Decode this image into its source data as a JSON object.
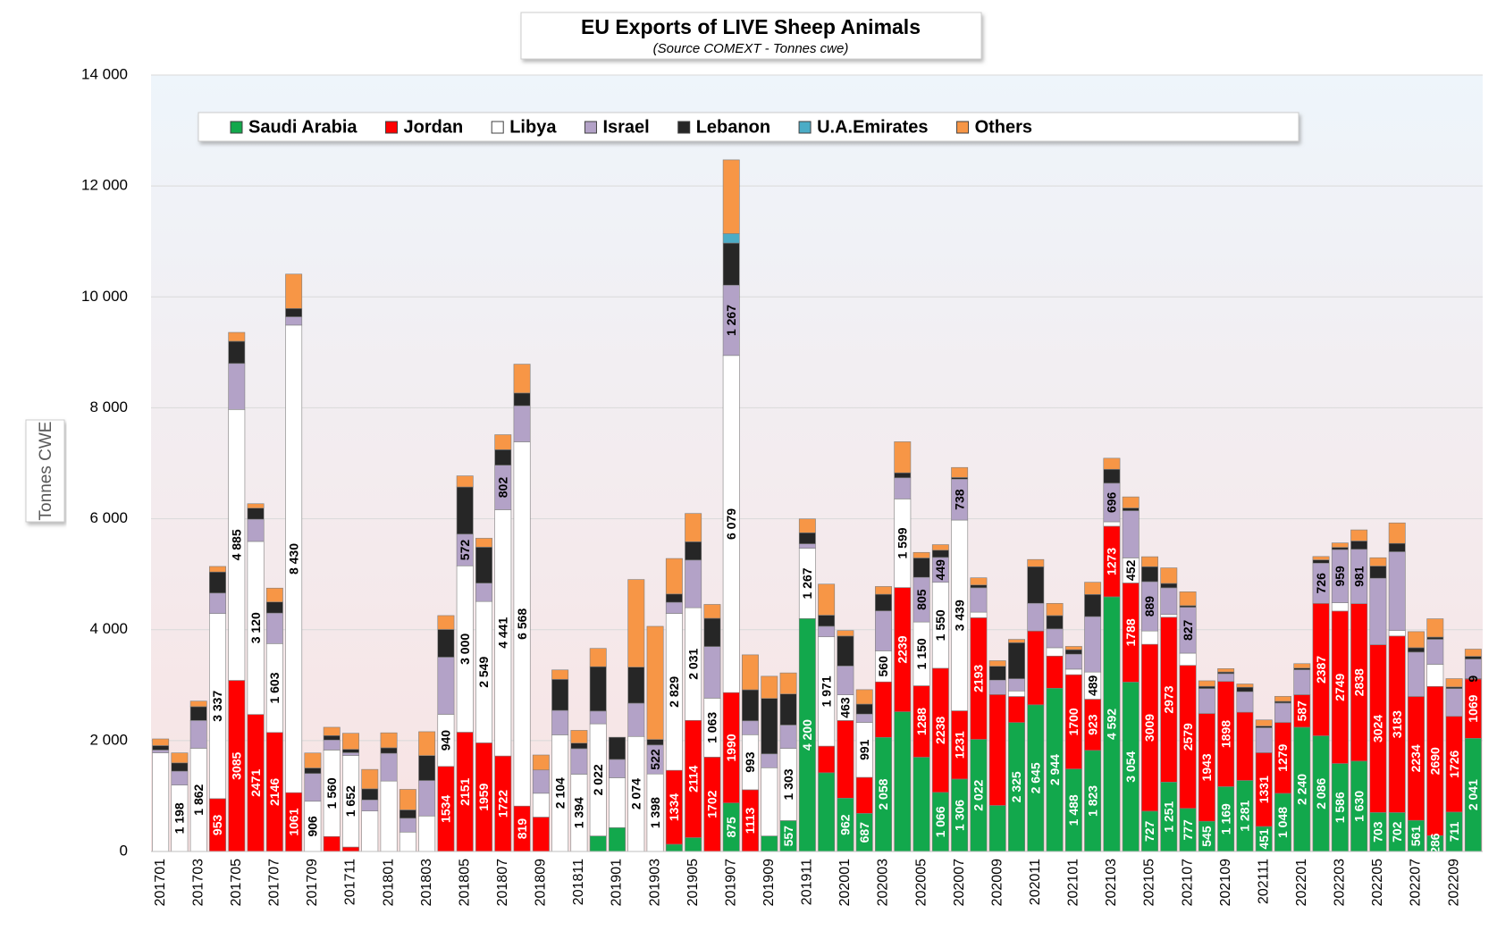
{
  "chart_data": {
    "type": "stacked-bar",
    "title": "EU Exports of LIVE Sheep Animals",
    "subtitle": "(Source COMEXT - Tonnes cwe)",
    "y_label": "Tonnes CWE",
    "ylim": [
      0,
      14000
    ],
    "yticks": [
      0,
      {
        "value": 2000,
        "label": "2 000"
      },
      {
        "value": 4000,
        "label": "4 000"
      },
      {
        "value": 6000,
        "label": "6 000"
      },
      {
        "value": 8000,
        "label": "8 000"
      },
      {
        "value": 10000,
        "label": "10 000"
      },
      {
        "value": 12000,
        "label": "12 000"
      },
      {
        "value": 14000,
        "label": "14 000"
      }
    ],
    "grid": true,
    "legend": "top",
    "categories": [
      "201701",
      null,
      "201703",
      null,
      "201705",
      null,
      "201707",
      null,
      "201709",
      null,
      "201711",
      null,
      "201801",
      null,
      "201803",
      null,
      "201805",
      null,
      "201807",
      null,
      "201809",
      null,
      "201811",
      null,
      "201901",
      null,
      "201903",
      null,
      "201905",
      null,
      "201907",
      null,
      "201909",
      null,
      "201911",
      null,
      "202001",
      null,
      "202003",
      null,
      "202005",
      null,
      "202007",
      null,
      "202009",
      null,
      "202011",
      null,
      "202101",
      null,
      "202103",
      null,
      "202105",
      null,
      "202107",
      null,
      "202109",
      null,
      "202111",
      null,
      "202201",
      null,
      "202203",
      null,
      "202205",
      null,
      "202207",
      null,
      "202209",
      null
    ],
    "series": [
      {
        "name": "Saudi Arabia",
        "color": "#12a84c",
        "label_color": "#ffffff",
        "values": [
          0,
          0,
          0,
          0,
          0,
          0,
          0,
          0,
          0,
          0,
          0,
          0,
          0,
          0,
          0,
          0,
          0,
          0,
          0,
          0,
          0,
          0,
          0,
          280,
          430,
          0,
          0,
          130,
          250,
          0,
          875,
          0,
          280,
          557,
          4200,
          1420,
          962,
          687,
          2058,
          2520,
          1700,
          1066,
          1306,
          2022,
          830,
          2325,
          2645,
          2944,
          1488,
          1823,
          4592,
          3054,
          727,
          1251,
          777,
          545,
          1169,
          1281,
          451,
          1048,
          2240,
          2086,
          1586,
          1630,
          703,
          702,
          561,
          286,
          711,
          2041
        ],
        "value_labels": [
          null,
          null,
          null,
          null,
          null,
          null,
          null,
          null,
          null,
          null,
          null,
          null,
          null,
          null,
          null,
          null,
          null,
          null,
          null,
          null,
          null,
          null,
          null,
          null,
          null,
          null,
          null,
          null,
          null,
          null,
          "875",
          null,
          null,
          "557",
          "4 200",
          null,
          "962",
          "687",
          "2 058",
          null,
          null,
          "1 066",
          "1 306",
          "2 022",
          null,
          "2 325",
          "2 645",
          "2 944",
          "1 488",
          "1 823",
          "4 592",
          "3 054",
          "727",
          "1 251",
          "777",
          "545",
          "1 169",
          "1 281",
          "451",
          "1 048",
          "2 240",
          "2 086",
          "1 586",
          "1 630",
          "703",
          "702",
          "561",
          "286",
          "711",
          "2 041"
        ]
      },
      {
        "name": "Jordan",
        "color": "#ff0000",
        "label_color": "#ffffff",
        "values": [
          0,
          0,
          0,
          953,
          3085,
          2471,
          2146,
          1061,
          0,
          270,
          80,
          0,
          0,
          0,
          0,
          1534,
          2151,
          1959,
          1722,
          819,
          620,
          0,
          0,
          0,
          0,
          0,
          0,
          1334,
          2114,
          1702,
          1990,
          1113,
          0,
          0,
          0,
          480,
          1400,
          650,
          1000,
          2239,
          1288,
          2238,
          1231,
          2193,
          2000,
          470,
          1330,
          580,
          1700,
          923,
          1273,
          1788,
          3009,
          2973,
          2579,
          1943,
          1898,
          1230,
          1331,
          1279,
          587,
          2387,
          2749,
          2838,
          3024,
          3183,
          2234,
          2690,
          1726,
          1069
        ],
        "value_labels": [
          null,
          null,
          null,
          "953",
          "3085",
          "2471",
          "2146",
          "1061",
          null,
          null,
          null,
          null,
          null,
          null,
          null,
          "1534",
          "2151",
          "1959",
          "1722",
          "819",
          null,
          null,
          null,
          null,
          null,
          null,
          null,
          "1334",
          "2114",
          "1702",
          "1990",
          "1113",
          null,
          null,
          null,
          null,
          null,
          null,
          null,
          "2239",
          "1288",
          "2238",
          "1231",
          "2193",
          null,
          null,
          null,
          null,
          "1700",
          "923",
          "1273",
          "1788",
          "3009",
          "2973",
          "2579",
          "1943",
          "1898",
          null,
          "1331",
          "1279",
          "587",
          "2387",
          "2749",
          "2838",
          "3024",
          "3183",
          "2234",
          "2690",
          "1726",
          "1069"
        ]
      },
      {
        "name": "Libya",
        "color": "#ffffff",
        "label_color": "#000000",
        "values": [
          1780,
          1198,
          1862,
          3337,
          4885,
          3120,
          1603,
          8430,
          906,
          1560,
          1652,
          730,
          1270,
          350,
          640,
          940,
          3000,
          2549,
          4441,
          6568,
          430,
          2104,
          1394,
          2022,
          900,
          2074,
          1398,
          2829,
          2031,
          1063,
          6079,
          993,
          1230,
          1303,
          1267,
          1971,
          463,
          991,
          560,
          1599,
          1150,
          1550,
          3439,
          100,
          0,
          100,
          0,
          150,
          100,
          489,
          80,
          452,
          240,
          50,
          220,
          0,
          0,
          0,
          0,
          0,
          0,
          0,
          150,
          0,
          0,
          100,
          0,
          400,
          0,
          9
        ],
        "value_labels": [
          null,
          "1 198",
          "1 862",
          "3 337",
          "4 885",
          "3 120",
          "1 603",
          "8 430",
          "906",
          "1 560",
          "1 652",
          null,
          null,
          null,
          null,
          "940",
          "3 000",
          "2 549",
          "4 441",
          "6 568",
          null,
          "2 104",
          "1 394",
          "2 022",
          null,
          "2 074",
          "1 398",
          "2 829",
          "2 031",
          "1 063",
          "6 079",
          "993",
          null,
          "1 303",
          "1 267",
          "1 971",
          "463",
          "991",
          "560",
          "1 599",
          "1 150",
          "1 550",
          "3 439",
          null,
          null,
          null,
          null,
          null,
          null,
          "489",
          null,
          "452",
          null,
          null,
          null,
          null,
          null,
          null,
          null,
          null,
          null,
          null,
          null,
          null,
          null,
          null,
          null,
          null,
          null,
          "9"
        ]
      },
      {
        "name": "Israel",
        "color": "#b3a2c7",
        "label_color": "#000000",
        "values": [
          50,
          250,
          500,
          370,
          830,
          400,
          550,
          150,
          500,
          180,
          50,
          200,
          500,
          250,
          640,
          1030,
          572,
          330,
          802,
          650,
          420,
          440,
          460,
          230,
          330,
          600,
          522,
          200,
          860,
          930,
          1267,
          250,
          250,
          420,
          80,
          190,
          520,
          150,
          720,
          380,
          805,
          449,
          738,
          440,
          260,
          220,
          500,
          340,
          270,
          1000,
          696,
          850,
          889,
          480,
          827,
          450,
          140,
          370,
          450,
          350,
          450,
          726,
          959,
          981,
          1200,
          1420,
          800,
          450,
          500,
          350
        ],
        "value_labels": [
          null,
          null,
          null,
          null,
          null,
          null,
          null,
          null,
          null,
          null,
          null,
          null,
          null,
          null,
          null,
          null,
          "572",
          null,
          "802",
          null,
          null,
          null,
          null,
          null,
          null,
          null,
          "522",
          null,
          null,
          null,
          "1 267",
          null,
          null,
          null,
          null,
          null,
          null,
          null,
          null,
          null,
          "805",
          "449",
          "738",
          null,
          null,
          null,
          null,
          null,
          null,
          null,
          "696",
          null,
          "889",
          null,
          "827",
          null,
          null,
          null,
          null,
          null,
          null,
          "726",
          "959",
          "981",
          null,
          null,
          null,
          null,
          null,
          null
        ]
      },
      {
        "name": "Lebanon",
        "color": "#262626",
        "values": [
          80,
          150,
          250,
          380,
          400,
          200,
          200,
          150,
          100,
          80,
          60,
          200,
          100,
          150,
          450,
          500,
          850,
          650,
          280,
          230,
          0,
          560,
          100,
          800,
          400,
          650,
          100,
          150,
          330,
          510,
          760,
          560,
          1000,
          560,
          200,
          200,
          540,
          180,
          300,
          90,
          350,
          130,
          30,
          50,
          250,
          650,
          660,
          240,
          80,
          400,
          250,
          50,
          270,
          80,
          30,
          40,
          30,
          80,
          30,
          30,
          30,
          60,
          40,
          150,
          220,
          150,
          80,
          40,
          30,
          50
        ]
      },
      {
        "name": "U.A.Emirates",
        "color": "#4bacc6",
        "values": [
          0,
          0,
          0,
          0,
          0,
          0,
          0,
          0,
          0,
          0,
          0,
          0,
          0,
          0,
          0,
          0,
          0,
          0,
          0,
          0,
          0,
          0,
          0,
          0,
          0,
          0,
          0,
          0,
          0,
          0,
          170,
          0,
          0,
          0,
          0,
          0,
          0,
          0,
          0,
          0,
          0,
          0,
          0,
          0,
          0,
          0,
          0,
          0,
          0,
          0,
          0,
          0,
          0,
          0,
          0,
          0,
          0,
          0,
          0,
          0,
          0,
          0,
          0,
          0,
          0,
          0,
          0,
          0,
          0,
          0
        ]
      },
      {
        "name": "Others",
        "color": "#f79646",
        "values": [
          120,
          180,
          100,
          100,
          160,
          80,
          250,
          620,
          270,
          150,
          290,
          350,
          270,
          370,
          430,
          250,
          200,
          160,
          270,
          520,
          270,
          170,
          230,
          330,
          0,
          1580,
          2040,
          640,
          510,
          250,
          1330,
          630,
          400,
          380,
          250,
          560,
          100,
          260,
          140,
          560,
          100,
          100,
          180,
          130,
          100,
          60,
          130,
          220,
          60,
          220,
          200,
          200,
          180,
          280,
          250,
          100,
          60,
          60,
          110,
          90,
          80,
          60,
          80,
          200,
          150,
          370,
          290,
          330,
          150,
          130
        ]
      }
    ]
  }
}
